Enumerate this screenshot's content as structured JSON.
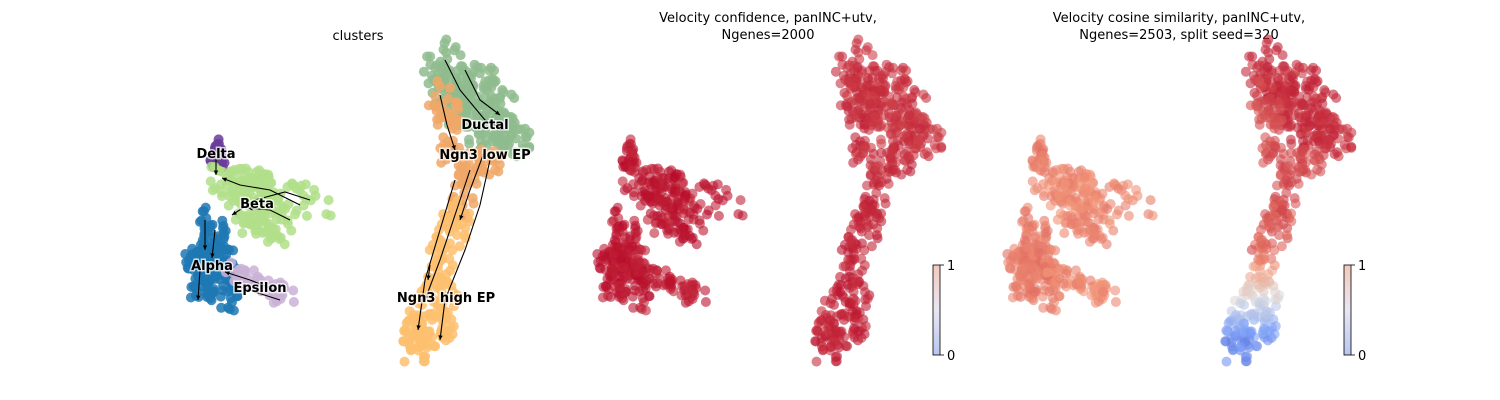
{
  "figure": {
    "panels": [
      {
        "title": "clusters"
      },
      {
        "title_lines": [
          "Velocity confidence, panINC+utv,",
          "Ngenes=2000"
        ]
      },
      {
        "title_lines": [
          "Velocity cosine similarity, panINC+utv,",
          "Ngenes=2503, split seed=320"
        ]
      }
    ]
  },
  "chart_data": [
    {
      "type": "scatter",
      "title": "clusters",
      "grid": false,
      "axes_visible": false,
      "velocity_streamlines": true,
      "clusters": [
        {
          "name": "Delta",
          "color": "#6a3d9a"
        },
        {
          "name": "Beta",
          "color": "#b2df8a"
        },
        {
          "name": "Alpha",
          "color": "#1f78b4"
        },
        {
          "name": "Epsilon",
          "color": "#cab2d6"
        },
        {
          "name": "Ductal",
          "color": "#8fbc8f"
        },
        {
          "name": "Ngn3 low EP",
          "color": "#f0a868"
        },
        {
          "name": "Ngn3 high EP",
          "color": "#fdbf6f"
        }
      ]
    },
    {
      "type": "scatter",
      "title": "Velocity confidence, panINC+utv, Ngenes=2000",
      "grid": false,
      "axes_visible": false,
      "color_scale": "coolwarm",
      "colorbar": {
        "min": 0,
        "max": 1,
        "ticks": [
          "0",
          "1"
        ]
      },
      "value_by_group": {
        "Delta": 0.97,
        "Beta": 0.97,
        "Alpha": 0.97,
        "Epsilon": 0.96,
        "Ductal": 0.92,
        "Ngn3 low EP": 0.93,
        "Ngn3 high EP": 0.95
      }
    },
    {
      "type": "scatter",
      "title": "Velocity cosine similarity, panINC+utv, Ngenes=2503, split seed=320",
      "grid": false,
      "axes_visible": false,
      "color_scale": "coolwarm",
      "colorbar": {
        "min": 0,
        "max": 1,
        "ticks": [
          "0",
          "1"
        ]
      },
      "value_by_group": {
        "Delta": 0.8,
        "Beta": 0.78,
        "Alpha": 0.8,
        "Epsilon": 0.78,
        "Ductal": 0.93,
        "Ngn3 low EP": 0.88,
        "Ngn3 high EP": 0.45
      }
    }
  ]
}
